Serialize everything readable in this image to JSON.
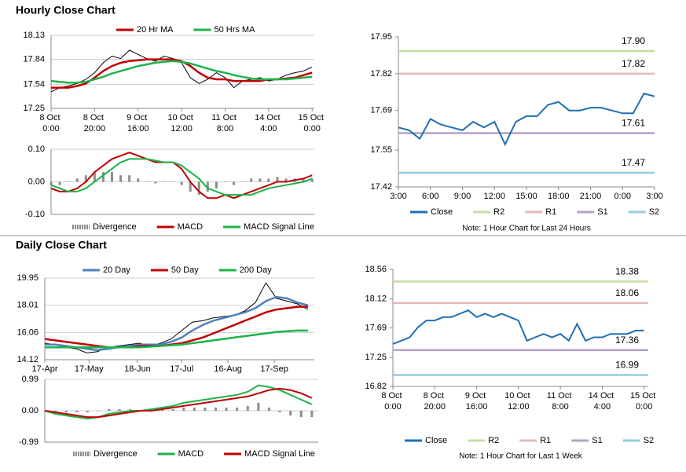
{
  "headings": [
    "Hourly Close Chart",
    "Daily Close Chart"
  ],
  "chart_data": [
    {
      "type": "line",
      "price": {
        "color": "#000000",
        "values": [
          17.45,
          17.5,
          17.52,
          17.55,
          17.6,
          17.68,
          17.8,
          17.88,
          17.85,
          17.95,
          17.9,
          17.85,
          17.82,
          17.88,
          17.85,
          17.8,
          17.62,
          17.55,
          17.6,
          17.68,
          17.62,
          17.5,
          17.58,
          17.6,
          17.62,
          17.58,
          17.6,
          17.65,
          17.68,
          17.7,
          17.75
        ]
      },
      "x": [
        0,
        4,
        8,
        12,
        16,
        20,
        24,
        28,
        32,
        36,
        40,
        44,
        48,
        52,
        56,
        60,
        64,
        68,
        72,
        76,
        80,
        84,
        88,
        92,
        96,
        100,
        104,
        108,
        112,
        116,
        120
      ],
      "series": [
        {
          "name": "20 Hr MA",
          "color": "#c00000",
          "values": [
            17.5,
            17.5,
            17.5,
            17.52,
            17.55,
            17.62,
            17.7,
            17.76,
            17.8,
            17.82,
            17.83,
            17.84,
            17.84,
            17.84,
            17.84,
            17.82,
            17.76,
            17.68,
            17.62,
            17.6,
            17.6,
            17.58,
            17.58,
            17.58,
            17.58,
            17.6,
            17.6,
            17.61,
            17.62,
            17.65,
            17.68
          ]
        },
        {
          "name": "50 Hrs MA",
          "color": "#1db34a",
          "values": [
            17.58,
            17.57,
            17.56,
            17.56,
            17.57,
            17.6,
            17.63,
            17.67,
            17.7,
            17.73,
            17.76,
            17.78,
            17.8,
            17.81,
            17.82,
            17.81,
            17.79,
            17.76,
            17.73,
            17.7,
            17.68,
            17.65,
            17.63,
            17.61,
            17.6,
            17.6,
            17.6,
            17.6,
            17.61,
            17.62,
            17.63
          ]
        }
      ],
      "xlim": [
        0,
        121
      ],
      "xticks": [
        {
          "value": 0,
          "label": "8 Oct 0:00"
        },
        {
          "value": 20,
          "label": "8 Oct 20:00"
        },
        {
          "value": 40,
          "label": "9 Oct 16:00"
        },
        {
          "value": 60,
          "label": "10 Oct 12:00"
        },
        {
          "value": 80,
          "label": "11 Oct 8:00"
        },
        {
          "value": 100,
          "label": "14 Oct 4:00"
        },
        {
          "value": 120,
          "label": "15 Oct 0:00"
        }
      ],
      "ylim": [
        17.25,
        18.13
      ],
      "yticks": [
        17.25,
        17.54,
        17.84,
        18.13
      ],
      "grid": true,
      "legend": "top"
    },
    {
      "type": "macd",
      "x": [
        0,
        4,
        8,
        12,
        16,
        20,
        24,
        28,
        32,
        36,
        40,
        44,
        48,
        52,
        56,
        60,
        64,
        68,
        72,
        76,
        80,
        84,
        88,
        92,
        96,
        100,
        104,
        108,
        112,
        116,
        120
      ],
      "series": [
        {
          "name": "Divergence",
          "style": "bar",
          "color": "#8c8c8c",
          "values": [
            -0.01,
            -0.01,
            0,
            0.01,
            0.02,
            0.03,
            0.03,
            0.03,
            0.02,
            0.02,
            0.01,
            0,
            -0.005,
            0,
            0,
            -0.01,
            -0.03,
            -0.04,
            -0.03,
            -0.02,
            0,
            -0.01,
            0,
            0.01,
            0.01,
            0.01,
            0.015,
            0.01,
            0.01,
            0.01,
            0.01
          ]
        },
        {
          "name": "MACD",
          "color": "#c00000",
          "values": [
            -0.02,
            -0.03,
            -0.03,
            -0.02,
            0,
            0.03,
            0.05,
            0.07,
            0.08,
            0.09,
            0.08,
            0.07,
            0.06,
            0.06,
            0.06,
            0.04,
            0,
            -0.03,
            -0.05,
            -0.05,
            -0.04,
            -0.05,
            -0.04,
            -0.03,
            -0.02,
            -0.01,
            0,
            0,
            0.005,
            0.01,
            0.02
          ]
        },
        {
          "name": "MACD Signal Line",
          "color": "#1db34a",
          "values": [
            -0.01,
            -0.02,
            -0.03,
            -0.03,
            -0.02,
            0,
            0.02,
            0.04,
            0.06,
            0.07,
            0.07,
            0.07,
            0.065,
            0.06,
            0.06,
            0.05,
            0.03,
            0.01,
            -0.02,
            -0.03,
            -0.04,
            -0.04,
            -0.04,
            -0.04,
            -0.03,
            -0.02,
            -0.015,
            -0.01,
            -0.005,
            0,
            0.01
          ]
        }
      ],
      "xlim": [
        0,
        121
      ],
      "ylim": [
        -0.1,
        0.1
      ],
      "yticks": [
        {
          "value": -0.1,
          "label": "-0.10"
        },
        {
          "value": 0,
          "label": "0.00"
        },
        {
          "value": 0.1,
          "label": "0.10"
        }
      ],
      "grid": true,
      "legend": "bottom"
    },
    {
      "type": "line",
      "x": [
        0,
        1,
        2,
        3,
        4,
        5,
        6,
        7,
        8,
        9,
        10,
        11,
        12,
        13,
        14,
        15,
        16,
        17,
        18,
        19,
        20,
        21,
        22,
        23,
        24
      ],
      "series": [
        {
          "name": "Close",
          "color": "#1f6fb2",
          "values": [
            17.63,
            17.62,
            17.59,
            17.66,
            17.64,
            17.63,
            17.62,
            17.65,
            17.63,
            17.65,
            17.57,
            17.65,
            17.67,
            17.67,
            17.71,
            17.72,
            17.69,
            17.69,
            17.7,
            17.7,
            17.69,
            17.68,
            17.68,
            17.75,
            17.74
          ]
        }
      ],
      "levels": [
        {
          "name": "R2",
          "color": "#c5dea0",
          "value": 17.9,
          "value_label": "17.90"
        },
        {
          "name": "R1",
          "color": "#e6b8b7",
          "value": 17.82
        },
        {
          "name": "S1",
          "color": "#b3a2c7",
          "value": 17.61
        },
        {
          "name": "S2",
          "color": "#93cddd",
          "value": 17.47
        }
      ],
      "xlim": [
        0,
        24
      ],
      "xticks": [
        {
          "value": 0,
          "label": "3:00"
        },
        {
          "value": 3,
          "label": "6:00"
        },
        {
          "value": 6,
          "label": "9:00"
        },
        {
          "value": 9,
          "label": "12:00"
        },
        {
          "value": 12,
          "label": "15:00"
        },
        {
          "value": 15,
          "label": "18:00"
        },
        {
          "value": 18,
          "label": "21:00"
        },
        {
          "value": 21,
          "label": "0:00"
        },
        {
          "value": 24,
          "label": "3:00"
        }
      ],
      "ylim": [
        17.42,
        17.95
      ],
      "yticks": [
        17.42,
        17.55,
        17.69,
        17.82,
        17.95
      ],
      "grid": false,
      "legend": "bottom",
      "note": "Note: 1 Hour Chart for Last 24 Hours"
    },
    {
      "type": "line",
      "price": {
        "color": "#000000",
        "values": [
          15.3,
          15.2,
          15.0,
          14.9,
          14.6,
          14.7,
          15.0,
          15.1,
          15.2,
          15.3,
          15.1,
          15.3,
          15.6,
          16.2,
          16.8,
          16.9,
          17.1,
          17.2,
          17.3,
          17.6,
          18.2,
          19.6,
          18.5,
          18.3,
          18.1,
          17.7
        ]
      },
      "x": [
        0,
        5,
        10,
        15,
        20,
        25,
        30,
        35,
        40,
        45,
        50,
        55,
        60,
        65,
        70,
        75,
        80,
        85,
        90,
        95,
        100,
        105,
        110,
        115,
        120,
        125
      ],
      "series": [
        {
          "name": "20 Day",
          "color": "#4f81bd",
          "values": [
            15.2,
            15.2,
            15.1,
            15.0,
            14.9,
            14.8,
            14.9,
            15.0,
            15.1,
            15.2,
            15.2,
            15.2,
            15.4,
            15.7,
            16.2,
            16.6,
            16.9,
            17.1,
            17.3,
            17.5,
            17.8,
            18.3,
            18.6,
            18.5,
            18.2,
            18.0
          ]
        },
        {
          "name": "50 Day",
          "color": "#c00000",
          "values": [
            15.6,
            15.5,
            15.4,
            15.3,
            15.2,
            15.1,
            15.0,
            15.0,
            15.0,
            15.1,
            15.1,
            15.1,
            15.2,
            15.3,
            15.5,
            15.7,
            16.0,
            16.3,
            16.6,
            16.9,
            17.2,
            17.5,
            17.7,
            17.8,
            17.9,
            17.9
          ]
        },
        {
          "name": "200 Day",
          "color": "#1db34a",
          "values": [
            15.0,
            15.0,
            15.0,
            15.0,
            15.0,
            15.0,
            15.0,
            15.0,
            15.0,
            15.0,
            15.05,
            15.1,
            15.15,
            15.2,
            15.3,
            15.4,
            15.5,
            15.6,
            15.7,
            15.8,
            15.9,
            16.0,
            16.1,
            16.15,
            16.2,
            16.2
          ]
        }
      ],
      "xlim": [
        0,
        128
      ],
      "xticks": [
        {
          "value": 0,
          "label": "17-Apr"
        },
        {
          "value": 21,
          "label": "17-May"
        },
        {
          "value": 44,
          "label": "18-Jun"
        },
        {
          "value": 65,
          "label": "17-Jul"
        },
        {
          "value": 87,
          "label": "16-Aug"
        },
        {
          "value": 109,
          "label": "17-Sep"
        }
      ],
      "ylim": [
        14.12,
        19.95
      ],
      "yticks": [
        14.12,
        16.06,
        18.01,
        19.95
      ],
      "grid": true,
      "legend": "top"
    },
    {
      "type": "macd",
      "x": [
        0,
        5,
        10,
        15,
        20,
        25,
        30,
        35,
        40,
        45,
        50,
        55,
        60,
        65,
        70,
        75,
        80,
        85,
        90,
        95,
        100,
        105,
        110,
        115,
        120,
        125
      ],
      "series": [
        {
          "name": "Divergence",
          "style": "bar",
          "color": "#8c8c8c",
          "values": [
            0,
            -0.05,
            -0.05,
            -0.05,
            -0.05,
            0,
            0.05,
            0.05,
            0.05,
            0,
            0.05,
            0.05,
            0.05,
            0.1,
            0.1,
            0.1,
            0.1,
            0.1,
            0.1,
            0.15,
            0.25,
            0.1,
            -0.05,
            -0.15,
            -0.2,
            -0.2
          ]
        },
        {
          "name": "MACD",
          "color": "#1db34a",
          "values": [
            0,
            -0.1,
            -0.15,
            -0.2,
            -0.25,
            -0.2,
            -0.1,
            -0.05,
            0,
            0,
            0.05,
            0.1,
            0.15,
            0.25,
            0.3,
            0.35,
            0.4,
            0.45,
            0.5,
            0.6,
            0.8,
            0.75,
            0.65,
            0.5,
            0.35,
            0.2
          ]
        },
        {
          "name": "MACD Signal Line",
          "color": "#c00000",
          "values": [
            0,
            -0.05,
            -0.1,
            -0.15,
            -0.2,
            -0.2,
            -0.15,
            -0.1,
            -0.05,
            0,
            0,
            0.05,
            0.1,
            0.15,
            0.2,
            0.25,
            0.3,
            0.35,
            0.4,
            0.45,
            0.55,
            0.65,
            0.7,
            0.65,
            0.55,
            0.4
          ]
        }
      ],
      "xlim": [
        0,
        128
      ],
      "ylim": [
        -0.99,
        0.99
      ],
      "yticks": [
        -0.99,
        {
          "value": 0,
          "label": "0.00"
        },
        0.99
      ],
      "grid": true,
      "legend": "bottom"
    },
    {
      "type": "line",
      "x": [
        0,
        4,
        8,
        12,
        16,
        20,
        24,
        28,
        32,
        36,
        40,
        44,
        48,
        52,
        56,
        60,
        64,
        68,
        72,
        76,
        80,
        84,
        88,
        92,
        96,
        100,
        104,
        108,
        112,
        116,
        120
      ],
      "series": [
        {
          "name": "Close",
          "color": "#1f6fb2",
          "values": [
            17.45,
            17.5,
            17.55,
            17.7,
            17.8,
            17.8,
            17.85,
            17.85,
            17.9,
            17.95,
            17.85,
            17.9,
            17.85,
            17.9,
            17.85,
            17.8,
            17.5,
            17.55,
            17.6,
            17.55,
            17.6,
            17.5,
            17.75,
            17.5,
            17.55,
            17.55,
            17.6,
            17.6,
            17.6,
            17.65,
            17.65
          ]
        }
      ],
      "levels": [
        {
          "name": "R2",
          "color": "#c5dea0",
          "value": 18.38
        },
        {
          "name": "R1",
          "color": "#e6b8b7",
          "value": 18.06
        },
        {
          "name": "S1",
          "color": "#b3a2c7",
          "value": 17.36
        },
        {
          "name": "S2",
          "color": "#93cddd",
          "value": 16.99
        }
      ],
      "xlim": [
        0,
        122
      ],
      "xticks": [
        {
          "value": 0,
          "label": "8 Oct 0:00"
        },
        {
          "value": 20,
          "label": "8 Oct 20:00"
        },
        {
          "value": 40,
          "label": "9 Oct 16:00"
        },
        {
          "value": 60,
          "label": "10 Oct 12:00"
        },
        {
          "value": 80,
          "label": "11 Oct 8:00"
        },
        {
          "value": 100,
          "label": "14 Oct 4:00"
        },
        {
          "value": 120,
          "label": "15 Oct 0:00"
        }
      ],
      "ylim": [
        16.82,
        18.56
      ],
      "yticks": [
        16.82,
        17.25,
        17.69,
        18.12,
        18.56
      ],
      "grid": false,
      "legend": "bottom",
      "note": "Note: 1 Hour Chart for Last 1 Week"
    }
  ]
}
